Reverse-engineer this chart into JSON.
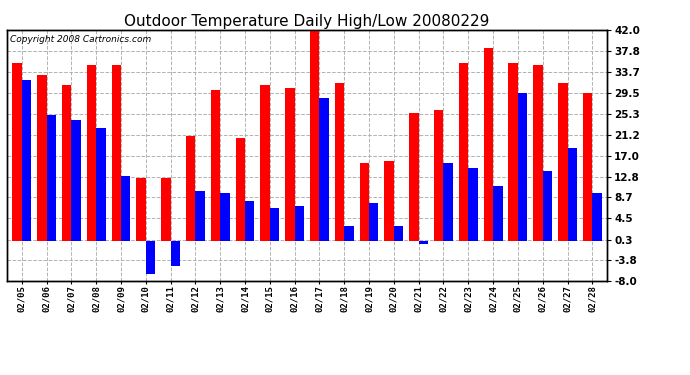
{
  "title": "Outdoor Temperature Daily High/Low 20080229",
  "copyright": "Copyright 2008 Cartronics.com",
  "dates": [
    "02/05",
    "02/06",
    "02/07",
    "02/08",
    "02/09",
    "02/10",
    "02/11",
    "02/12",
    "02/13",
    "02/14",
    "02/15",
    "02/16",
    "02/17",
    "02/18",
    "02/19",
    "02/20",
    "02/21",
    "02/22",
    "02/23",
    "02/24",
    "02/25",
    "02/26",
    "02/27",
    "02/28"
  ],
  "highs": [
    35.5,
    33.0,
    31.0,
    35.0,
    35.0,
    12.5,
    12.5,
    21.0,
    30.0,
    20.5,
    31.0,
    30.5,
    42.0,
    31.5,
    15.5,
    16.0,
    25.5,
    26.0,
    35.5,
    38.5,
    35.5,
    35.0,
    31.5,
    29.5
  ],
  "lows": [
    32.0,
    25.0,
    24.0,
    22.5,
    13.0,
    -6.5,
    -5.0,
    10.0,
    9.5,
    8.0,
    6.5,
    7.0,
    28.5,
    3.0,
    7.5,
    3.0,
    -0.5,
    15.5,
    14.5,
    11.0,
    29.5,
    14.0,
    18.5,
    9.5
  ],
  "high_color": "#ff0000",
  "low_color": "#0000ff",
  "bg_color": "#ffffff",
  "grid_color": "#aaaaaa",
  "ymin": -8.0,
  "ymax": 42.0,
  "yticks": [
    42.0,
    37.8,
    33.7,
    29.5,
    25.3,
    21.2,
    17.0,
    12.8,
    8.7,
    4.5,
    0.3,
    -3.8,
    -8.0
  ],
  "title_fontsize": 11,
  "bar_width": 0.38,
  "fig_width": 6.9,
  "fig_height": 3.75,
  "dpi": 100
}
